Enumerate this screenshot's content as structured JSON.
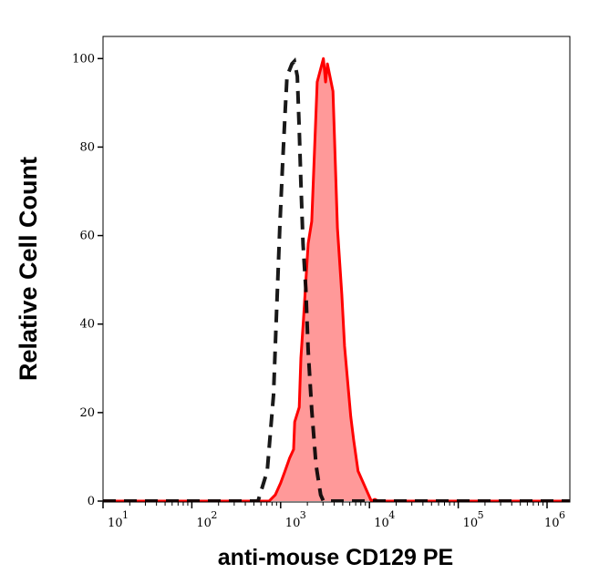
{
  "chart_data": {
    "type": "area",
    "title": "",
    "xlabel": "anti-mouse CD129 PE",
    "ylabel": "Relative Cell Count",
    "x_scale": "log",
    "xlim": [
      10,
      1800000
    ],
    "ylim": [
      0,
      105
    ],
    "x_ticks": [
      10,
      100,
      1000,
      10000,
      100000,
      1000000
    ],
    "x_tick_labels": [
      {
        "base": "10",
        "exp": "1"
      },
      {
        "base": "10",
        "exp": "2"
      },
      {
        "base": "10",
        "exp": "3"
      },
      {
        "base": "10",
        "exp": "4"
      },
      {
        "base": "10",
        "exp": "5"
      },
      {
        "base": "10",
        "exp": "6"
      }
    ],
    "y_ticks": [
      0,
      20,
      40,
      60,
      80,
      100
    ],
    "y_tick_labels": [
      "0",
      "20",
      "40",
      "60",
      "80",
      "100"
    ],
    "grid": false,
    "series": [
      {
        "style": "dashed-line",
        "color": "#000000",
        "x": [
          10,
          556,
          707,
          831,
          892,
          980,
          1050,
          1130,
          1180,
          1340,
          1430,
          1540,
          1620,
          1690,
          1790,
          1920,
          2040,
          2240,
          2500,
          2820,
          3030,
          3600,
          1800000
        ],
        "y": [
          0,
          0,
          6.8,
          24,
          41,
          62,
          76,
          89,
          96,
          98.8,
          99.4,
          96,
          84,
          72,
          58,
          48,
          34,
          20.6,
          8.2,
          1.4,
          0,
          0,
          0
        ]
      },
      {
        "style": "filled-area",
        "color": "#ff0000",
        "fill": "#ff9999",
        "x": [
          10,
          740,
          870,
          1000,
          1120,
          1260,
          1400,
          1440,
          1620,
          1690,
          1810,
          2040,
          2240,
          2580,
          3030,
          3210,
          3360,
          3880,
          4360,
          4890,
          5240,
          6160,
          6650,
          7450,
          9500,
          10500,
          11500,
          12500,
          1800000
        ],
        "y": [
          0,
          0,
          1.4,
          4.1,
          6.8,
          9.7,
          11.7,
          17.9,
          21.2,
          32.3,
          41.2,
          58.2,
          63.2,
          94.7,
          100,
          94.7,
          98.8,
          92.6,
          61.7,
          46.7,
          35,
          19.1,
          13.8,
          6.8,
          2,
          0,
          0.4,
          0,
          0
        ]
      }
    ]
  }
}
